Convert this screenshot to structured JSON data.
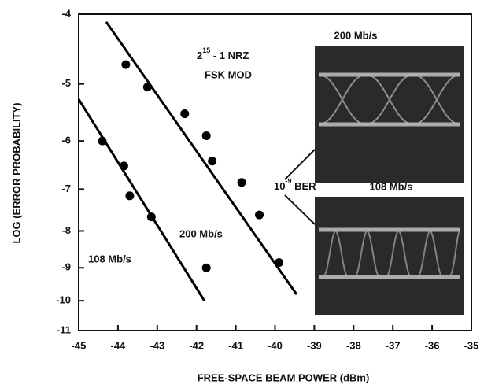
{
  "chart_data": {
    "type": "scatter",
    "x_label": "FREE-SPACE BEAM POWER (dBm)",
    "y_label": "LOG (ERROR PROBABILITY)",
    "xlim": [
      -45,
      -35
    ],
    "xticks": [
      -45,
      -44,
      -43,
      -42,
      -41,
      -40,
      -39,
      -38,
      -37,
      -36,
      -35
    ],
    "ylim": [
      -4,
      -11
    ],
    "yticks": [
      -4,
      -5,
      -6,
      -7,
      -8,
      -9,
      -10,
      -11
    ],
    "yscale": "log",
    "series": [
      {
        "name": "200 Mb/s",
        "color": "#000000",
        "x": [
          -43.8,
          -43.25,
          -42.3,
          -41.75,
          -41.6,
          -40.85,
          -40.4,
          -39.9
        ],
        "values": [
          -4.7,
          -5.05,
          -5.5,
          -5.9,
          -6.4,
          -6.85,
          -7.6,
          -8.85
        ],
        "fit_x": [
          -44.3,
          -39.45
        ],
        "fit_values": [
          -4.1,
          -9.8
        ]
      },
      {
        "name": "108 Mb/s",
        "color": "#000000",
        "x": [
          -44.4,
          -43.85,
          -43.7,
          -43.15,
          -41.75
        ],
        "values": [
          -6.0,
          -6.5,
          -7.15,
          -7.65,
          -9.0
        ],
        "fit_x": [
          -45,
          -41.8
        ],
        "fit_values": [
          -5.25,
          -10.0
        ]
      }
    ],
    "annotations": {
      "code": [
        "2",
        "15",
        " - 1 NRZ"
      ],
      "modulation": "FSK MOD",
      "ber": [
        "10",
        "-9",
        " BER"
      ],
      "eye_top": "200 Mb/s",
      "eye_bottom": "108 Mb/s"
    }
  }
}
